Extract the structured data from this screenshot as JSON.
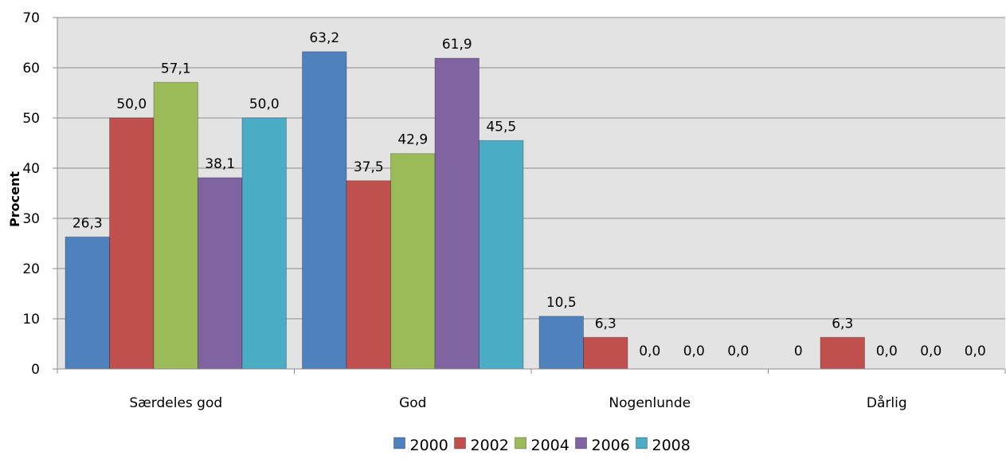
{
  "chart_data": {
    "type": "bar",
    "title": "",
    "xlabel": "",
    "ylabel": "Procent",
    "ylim": [
      0,
      70
    ],
    "yticks": [
      0,
      10,
      20,
      30,
      40,
      50,
      60,
      70
    ],
    "grid": true,
    "legend_position": "bottom",
    "categories": [
      "Særdeles god",
      "God",
      "Nogenlunde",
      "Dårlig"
    ],
    "series": [
      {
        "name": "2000",
        "color": "#4f81bd",
        "values": [
          26.3,
          63.2,
          10.5,
          0
        ],
        "labels": [
          "26,3",
          "63,2",
          "10,5",
          "0"
        ]
      },
      {
        "name": "2002",
        "color": "#c0504d",
        "values": [
          50.0,
          37.5,
          6.3,
          6.3
        ],
        "labels": [
          "50,0",
          "37,5",
          "6,3",
          "6,3"
        ]
      },
      {
        "name": "2004",
        "color": "#9bbb59",
        "values": [
          57.1,
          42.9,
          0.0,
          0.0
        ],
        "labels": [
          "57,1",
          "42,9",
          "0,0",
          "0,0"
        ]
      },
      {
        "name": "2006",
        "color": "#8064a2",
        "values": [
          38.1,
          61.9,
          0.0,
          0.0
        ],
        "labels": [
          "38,1",
          "61,9",
          "0,0",
          "0,0"
        ]
      },
      {
        "name": "2008",
        "color": "#4bacc6",
        "values": [
          50.0,
          45.5,
          0.0,
          0.0
        ],
        "labels": [
          "50,0",
          "45,5",
          "0,0",
          "0,0"
        ]
      }
    ]
  }
}
